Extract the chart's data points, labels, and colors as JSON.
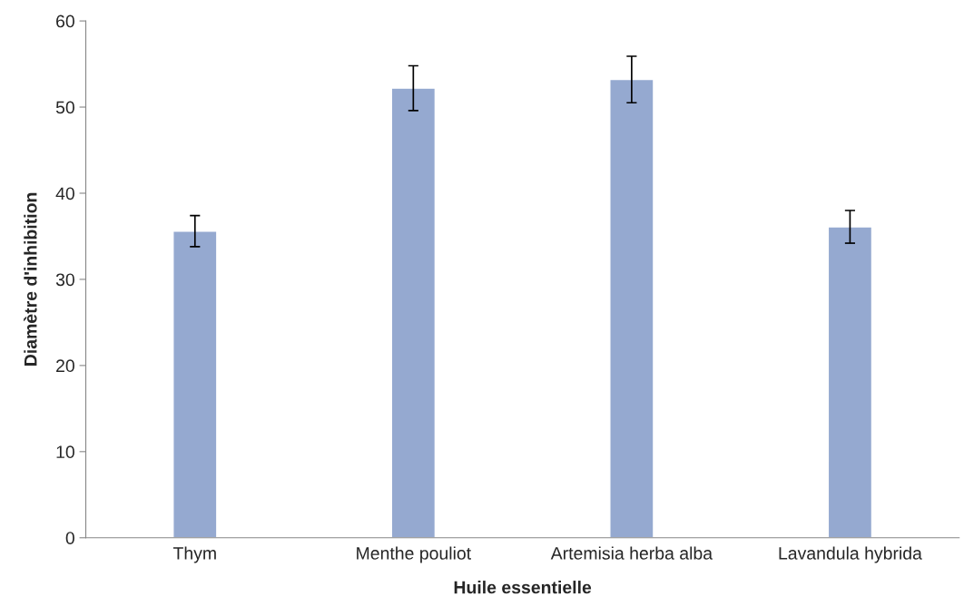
{
  "chart_data": {
    "type": "bar",
    "xlabel": "Huile essentielle",
    "ylabel": "Diamètre d'inhibition",
    "categories": [
      "Thym",
      "Menthe pouliot",
      "Artemisia herba alba",
      "Lavandula hybrida"
    ],
    "values": [
      35.6,
      52.2,
      53.2,
      36.1
    ],
    "errors": [
      1.8,
      2.6,
      2.7,
      1.9
    ],
    "color": "#95a9d0",
    "ylim": [
      0,
      60
    ],
    "yticks": [
      0,
      10,
      20,
      30,
      40,
      50,
      60
    ],
    "grid": false,
    "legend": false
  }
}
